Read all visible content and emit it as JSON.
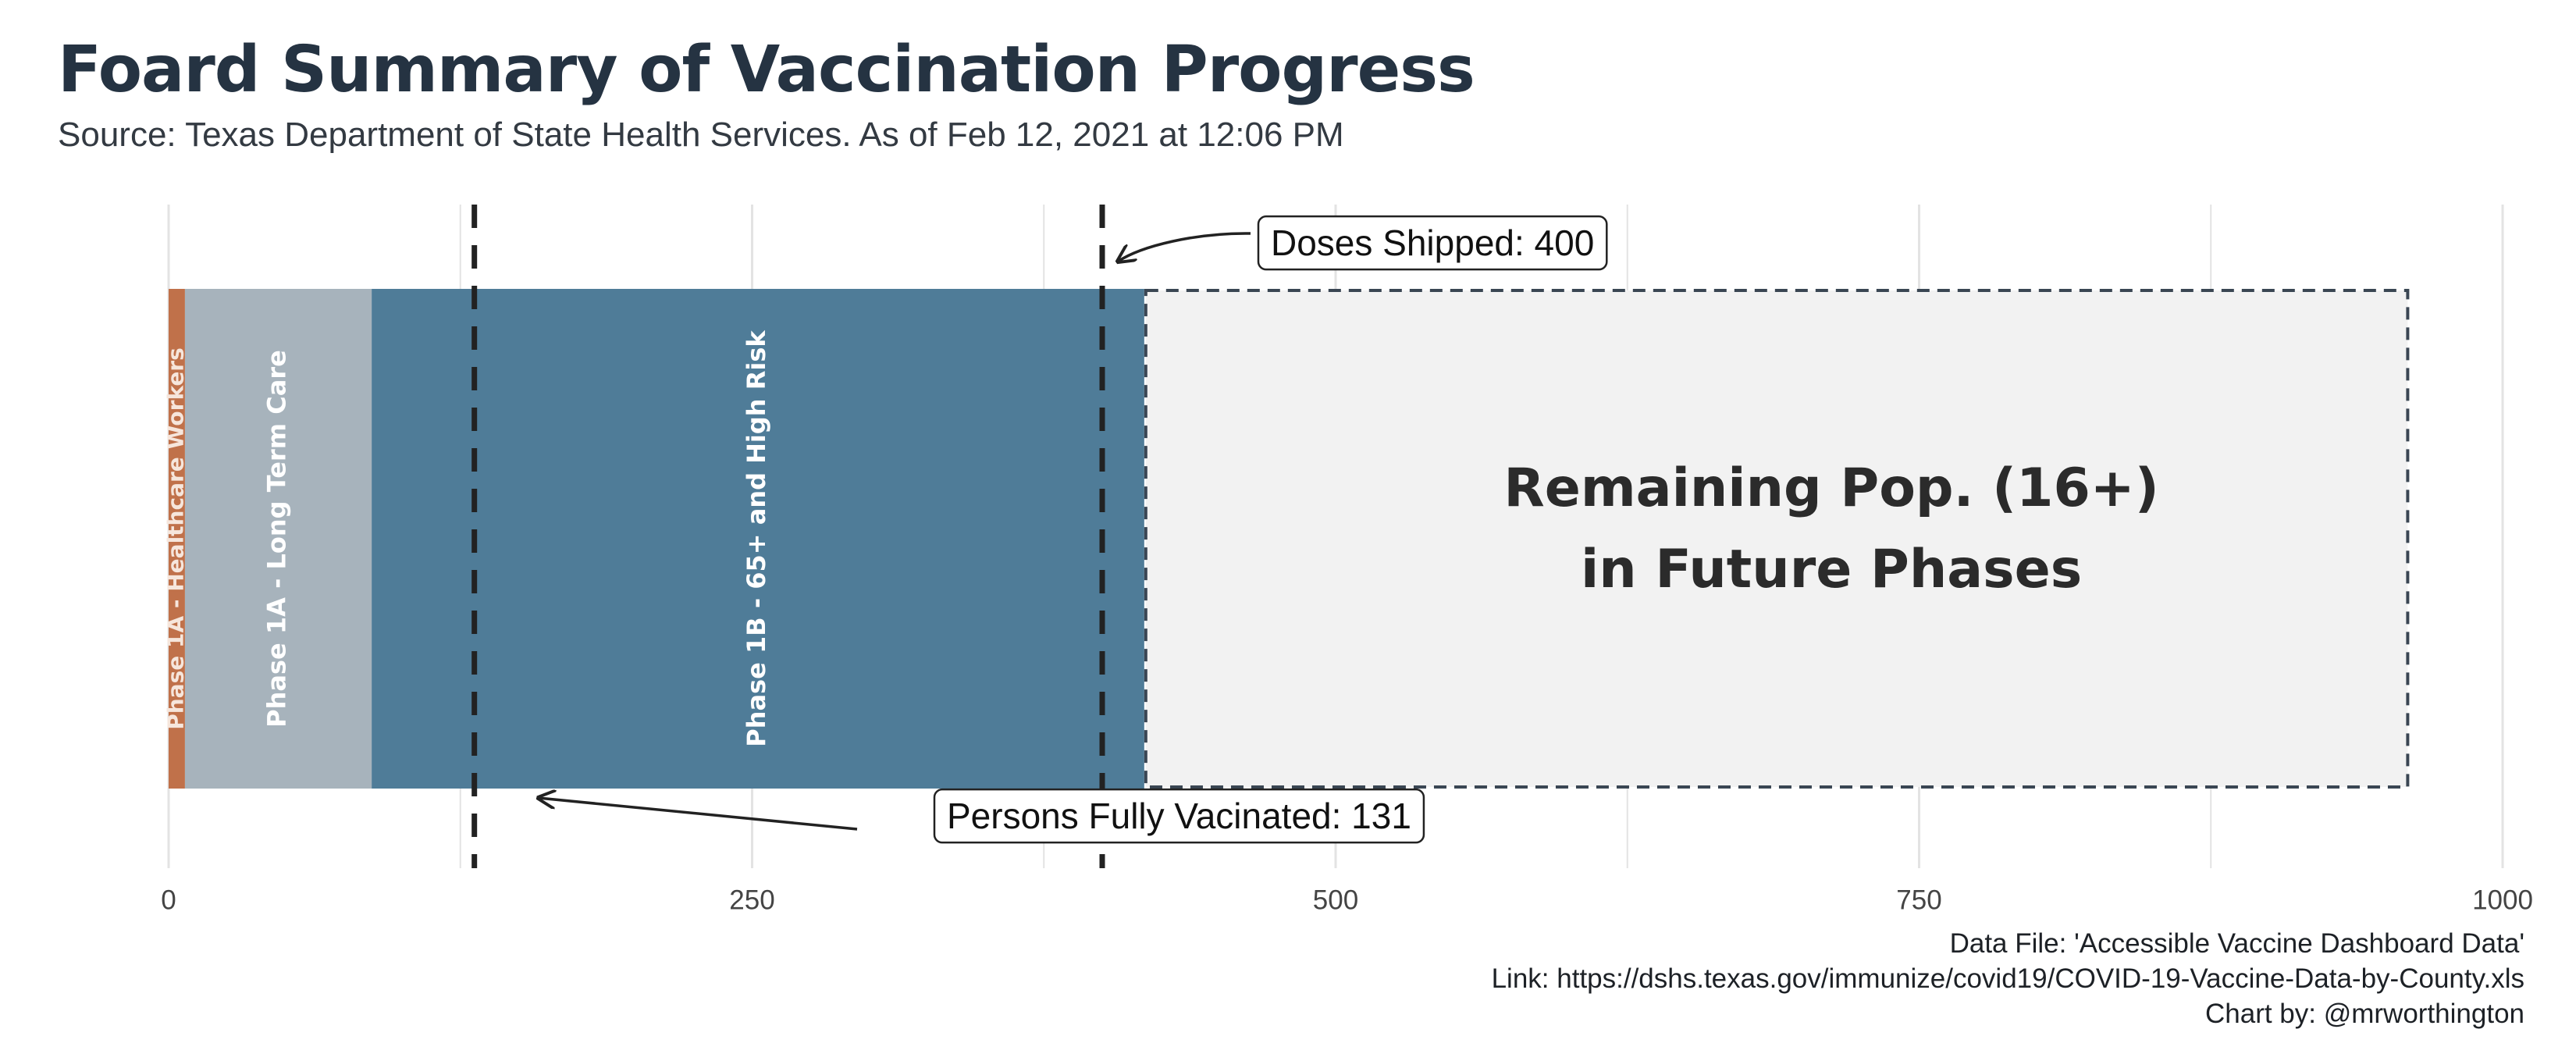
{
  "chart_data": {
    "type": "bar",
    "orientation": "horizontal-stacked",
    "title": "Foard Summary of Vaccination Progress",
    "subtitle": "Source: Texas Department of State Health Services. As of Feb 12, 2021 at 12:06 PM",
    "xlim": [
      0,
      1000
    ],
    "x_ticks": [
      0,
      250,
      500,
      750,
      1000
    ],
    "x_tick_labels": [
      "0",
      "250",
      "500",
      "750",
      "1000"
    ],
    "grid": true,
    "segments": [
      {
        "label": "Phase 1A - Healthcare Workers",
        "start": 0,
        "end": 7,
        "value": 7,
        "color": "#c0714a"
      },
      {
        "label": "Phase 1A - Long Term Care",
        "start": 7,
        "end": 87,
        "value": 80,
        "color": "#a7b3bc"
      },
      {
        "label": "Phase 1B - 65+ and High Risk",
        "start": 87,
        "end": 418,
        "value": 331,
        "color": "#4f7c98"
      },
      {
        "label": "Remaining Pop. (16+)\nin Future Phases",
        "start": 418,
        "end": 960,
        "value": 542,
        "color": "#f2f2f2",
        "dashed_border": true
      }
    ],
    "reference_lines": [
      {
        "label": "Persons Fully Vacinated: 131",
        "value": 131
      },
      {
        "label": "Doses Shipped: 400",
        "value": 400
      }
    ],
    "colors": {
      "title": "#253342",
      "reference_line": "#222222",
      "grid": "#e3e3e3",
      "remaining_border": "#3a4653"
    }
  },
  "caption": {
    "line1": "Data File: 'Accessible Vaccine Dashboard Data'",
    "line2": "Link: https://dshs.texas.gov/immunize/covid19/COVID-19-Vaccine-Data-by-County.xls",
    "line3": "Chart by: @mrworthington"
  }
}
